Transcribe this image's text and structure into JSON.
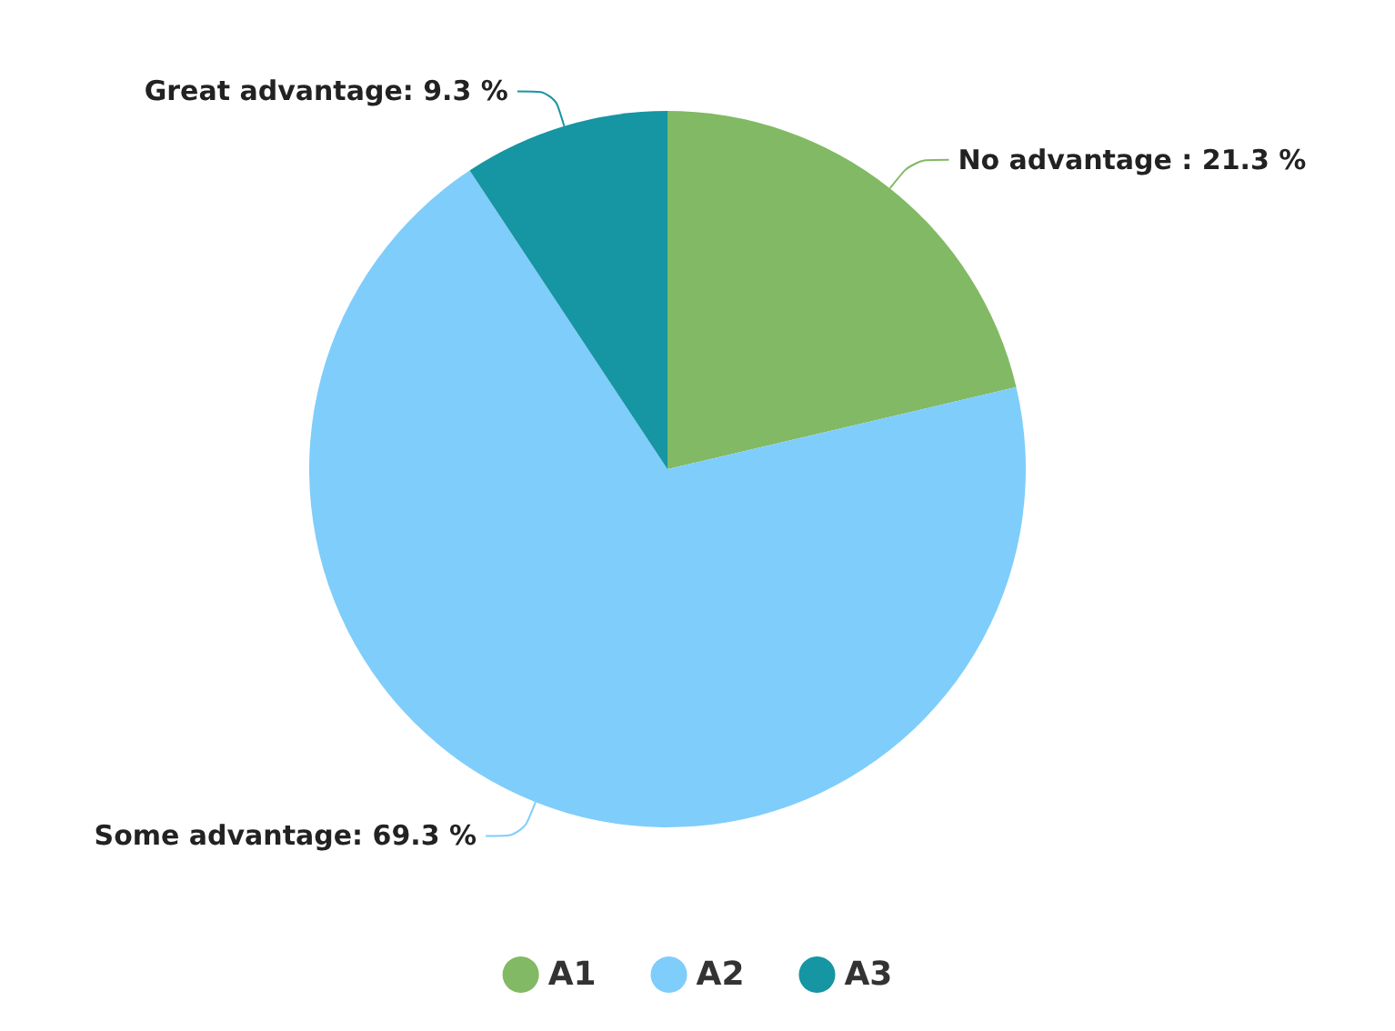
{
  "chart_data": {
    "type": "pie",
    "categories": [
      "A1",
      "A2",
      "A3"
    ],
    "values": [
      21.3,
      69.3,
      9.3
    ],
    "colors": [
      "#82b964",
      "#7fcdfb",
      "#1695a3"
    ],
    "value_labels": [
      "No advantage : 21.3 %",
      "Some advantage: 69.3 %",
      "Great advantage: 9.3 %"
    ],
    "legend": "bottom"
  }
}
